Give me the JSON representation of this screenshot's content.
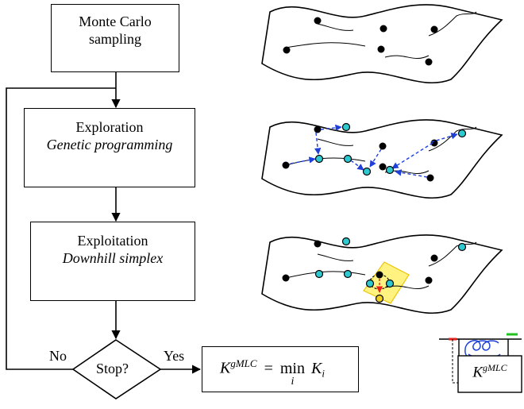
{
  "flowchart": {
    "monte_carlo": {
      "line1": "Monte Carlo",
      "line2": "sampling"
    },
    "exploration": {
      "title": "Exploration",
      "subtitle": "Genetic programming"
    },
    "exploitation": {
      "title": "Exploitation",
      "subtitle": "Downhill simplex"
    },
    "decision": {
      "label": "Stop?",
      "no": "No",
      "yes": "Yes"
    },
    "result": {
      "K": "K",
      "sup": "gMLC",
      "eq": "=",
      "min": "min",
      "sub_i": "i",
      "K_i": "K",
      "i": "i"
    }
  },
  "plant_diagram": {
    "K": "K",
    "sup": "gMLC"
  },
  "colors": {
    "exploration_arrow": "#1f3fd8",
    "exploitation_arrow": "#e8201a",
    "cyan_dot": "#2ec8d0",
    "yellow_dot": "#f0d020",
    "highlight": "#fff27a",
    "plant_blue": "#1f3fd8",
    "plant_green": "#22c020"
  }
}
